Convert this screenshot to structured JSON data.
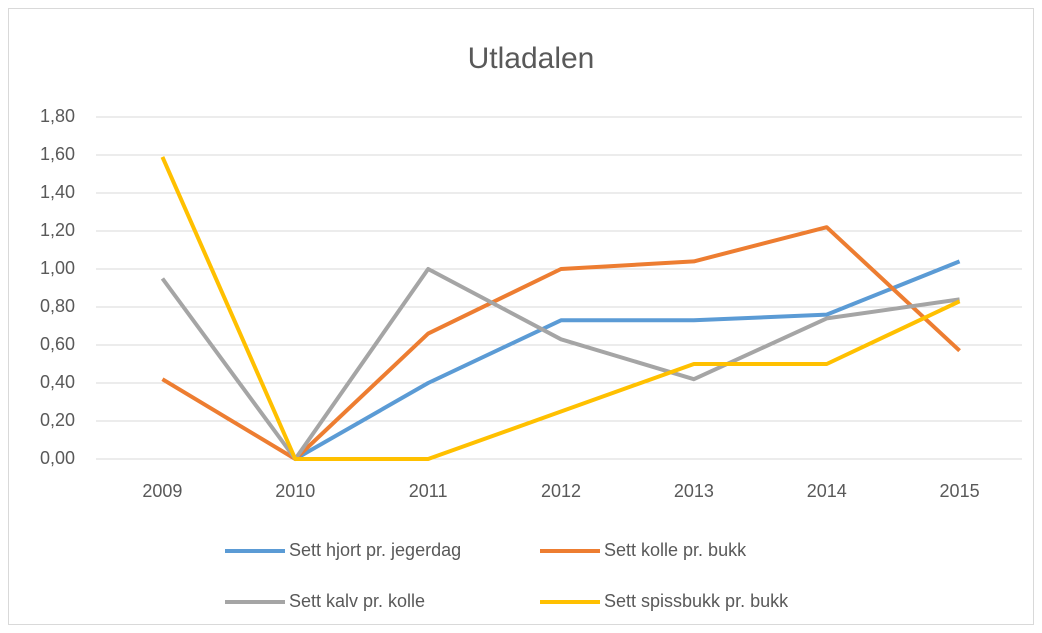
{
  "chart_data": {
    "type": "line",
    "title": "Utladalen",
    "categories": [
      "2009",
      "2010",
      "2011",
      "2012",
      "2013",
      "2014",
      "2015"
    ],
    "series": [
      {
        "name": "Sett hjort pr. jegerdag",
        "color": "#5b9bd5",
        "values": [
          null,
          0,
          0.4,
          0.73,
          0.73,
          0.76,
          1.04
        ]
      },
      {
        "name": "Sett kolle pr. bukk",
        "color": "#ed7d31",
        "values": [
          0.42,
          0,
          0.66,
          1.0,
          1.04,
          1.22,
          0.57
        ]
      },
      {
        "name": "Sett kalv pr. kolle",
        "color": "#a5a5a5",
        "values": [
          0.95,
          0,
          1.0,
          0.63,
          0.42,
          0.74,
          0.84
        ]
      },
      {
        "name": "Sett spissbukk pr. bukk",
        "color": "#ffc000",
        "values": [
          1.59,
          0,
          0,
          0.25,
          0.5,
          0.5,
          0.83
        ]
      }
    ],
    "ylim": [
      0,
      1.8
    ],
    "yticks": [
      {
        "value": 0,
        "label": "0,00"
      },
      {
        "value": 0.2,
        "label": "0,20"
      },
      {
        "value": 0.4,
        "label": "0,40"
      },
      {
        "value": 0.6,
        "label": "0,60"
      },
      {
        "value": 0.8,
        "label": "0,80"
      },
      {
        "value": 1.0,
        "label": "1,00"
      },
      {
        "value": 1.2,
        "label": "1,20"
      },
      {
        "value": 1.4,
        "label": "1,40"
      },
      {
        "value": 1.6,
        "label": "1,60"
      },
      {
        "value": 1.8,
        "label": "1,80"
      }
    ],
    "grid": true,
    "legend": "bottom"
  }
}
